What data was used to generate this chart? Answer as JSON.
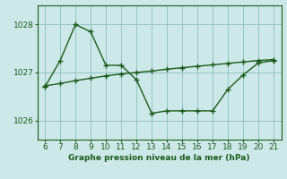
{
  "x": [
    6,
    7,
    8,
    9,
    10,
    11,
    12,
    13,
    14,
    15,
    16,
    17,
    18,
    19,
    20,
    21
  ],
  "y_main": [
    1026.7,
    1027.25,
    1028.0,
    1027.85,
    1027.15,
    1027.15,
    1026.85,
    1026.15,
    1026.2,
    1026.2,
    1026.2,
    1026.2,
    1026.65,
    1026.95,
    1027.2,
    1027.25
  ],
  "y_trend": [
    1026.72,
    1026.77,
    1026.83,
    1026.88,
    1026.93,
    1026.97,
    1027.0,
    1027.03,
    1027.07,
    1027.1,
    1027.13,
    1027.16,
    1027.19,
    1027.22,
    1027.25,
    1027.27
  ],
  "xlim": [
    5.5,
    21.5
  ],
  "ylim": [
    1025.6,
    1028.4
  ],
  "yticks": [
    1026,
    1027,
    1028
  ],
  "xticks": [
    6,
    7,
    8,
    9,
    10,
    11,
    12,
    13,
    14,
    15,
    16,
    17,
    18,
    19,
    20,
    21
  ],
  "xlabel": "Graphe pression niveau de la mer (hPa)",
  "line_color": "#1a5c1a",
  "bg_color": "#cce8e8",
  "grid_color": "#8dbfbf",
  "marker": "+",
  "marker_size": 4,
  "linewidth": 1.0
}
